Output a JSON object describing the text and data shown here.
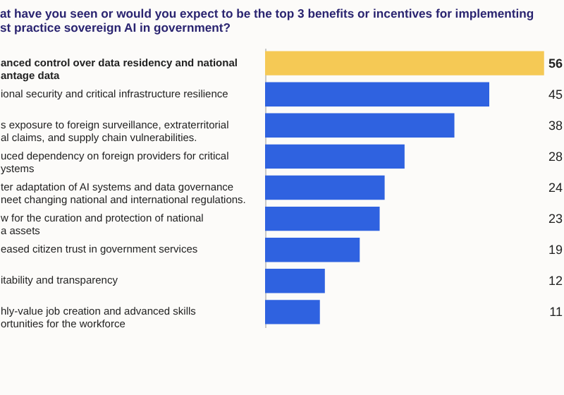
{
  "chart_data": {
    "type": "bar",
    "orientation": "horizontal",
    "title": "at have you seen or would you expect to be the top 3 benefits or incentives for implementing\nst practice sovereign AI in government?",
    "categories": [
      "anced control over data residency and national\nantage data",
      "ional security and critical infrastructure resilience",
      "s exposure to foreign surveillance, extraterritorial\nal claims, and supply chain vulnerabilities.",
      "uced dependency on foreign providers for critical\nystems",
      "ter adaptation of AI systems and data governance\nneet changing national and international regulations.",
      "w for the curation and protection of national\na assets",
      "eased citizen trust in government services",
      "itability and transparency",
      "hly-value job creation and advanced skills\nortunities for the workforce"
    ],
    "values": [
      56,
      45,
      38,
      28,
      24,
      23,
      19,
      12,
      11
    ],
    "colors": [
      "#f5c955",
      "#2f62e0",
      "#2f62e0",
      "#2f62e0",
      "#2f62e0",
      "#2f62e0",
      "#2f62e0",
      "#2f62e0",
      "#2f62e0"
    ],
    "data_labels": true
  }
}
